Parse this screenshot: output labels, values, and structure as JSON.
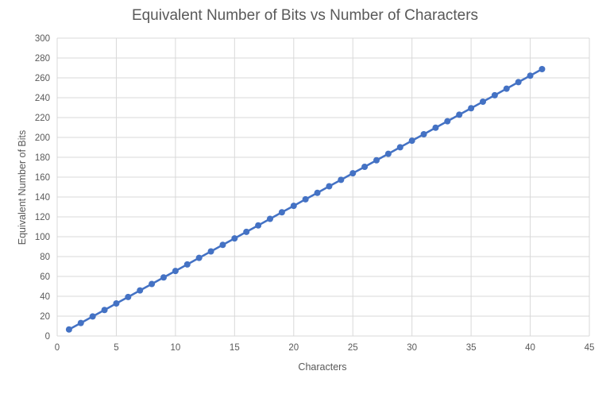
{
  "chart_data": {
    "type": "scatter",
    "title": "Equivalent Number of Bits vs Number of Characters",
    "xlabel": "Characters",
    "ylabel": "Equivalent Number of Bits",
    "xlim": [
      0,
      45
    ],
    "ylim": [
      0,
      300
    ],
    "x_ticks": [
      "0",
      "5",
      "10",
      "15",
      "20",
      "25",
      "30",
      "35",
      "40",
      "45"
    ],
    "y_ticks": [
      "0",
      "20",
      "40",
      "60",
      "80",
      "100",
      "120",
      "140",
      "160",
      "180",
      "200",
      "220",
      "240",
      "260",
      "280",
      "300"
    ],
    "grid": true,
    "legend": "none",
    "line_connected": true,
    "series_color": "#4472c4",
    "x": [
      1,
      2,
      3,
      4,
      5,
      6,
      7,
      8,
      9,
      10,
      11,
      12,
      13,
      14,
      15,
      16,
      17,
      18,
      19,
      20,
      21,
      22,
      23,
      24,
      25,
      26,
      27,
      28,
      29,
      30,
      31,
      32,
      33,
      34,
      35,
      36,
      37,
      38,
      39,
      40,
      41
    ],
    "y": [
      6.6,
      13.1,
      19.7,
      26.2,
      32.8,
      39.3,
      45.9,
      52.4,
      59.0,
      65.5,
      72.1,
      78.7,
      85.2,
      91.8,
      98.3,
      104.9,
      111.4,
      118.0,
      124.6,
      131.1,
      137.7,
      144.2,
      150.8,
      157.3,
      163.9,
      170.4,
      177.0,
      183.5,
      190.1,
      196.7,
      203.2,
      209.8,
      216.3,
      222.9,
      229.4,
      236.0,
      242.5,
      249.1,
      255.7,
      262.2,
      268.8
    ]
  }
}
